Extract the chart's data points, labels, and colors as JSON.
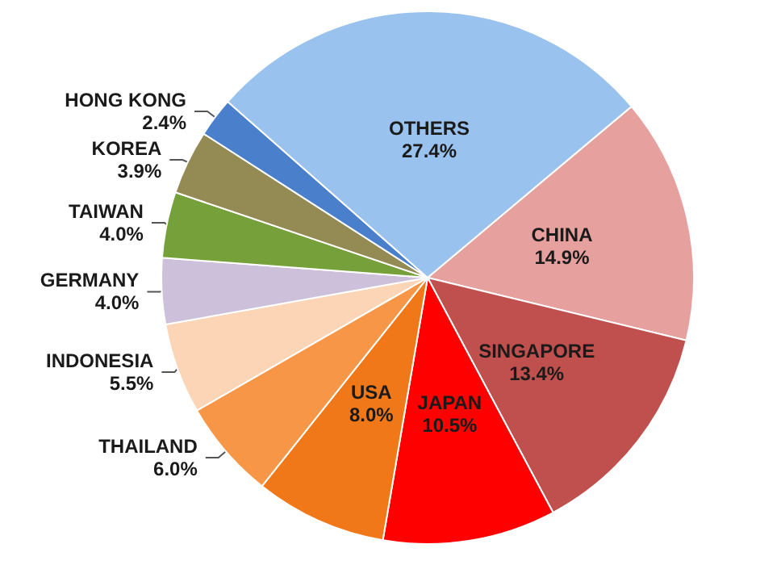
{
  "chart_data": {
    "type": "pie",
    "categories": [
      "CHINA",
      "SINGAPORE",
      "JAPAN",
      "USA",
      "THAILAND",
      "INDONESIA",
      "GERMANY",
      "TAIWAN",
      "KOREA",
      "HONG KONG",
      "OTHERS"
    ],
    "values": [
      14.9,
      13.4,
      10.5,
      8.0,
      6.0,
      5.5,
      4.0,
      4.0,
      3.9,
      2.4,
      27.4
    ],
    "value_labels": [
      "14.9%",
      "13.4%",
      "10.5%",
      "8.0%",
      "6.0%",
      "5.5%",
      "4.0%",
      "4.0%",
      "3.9%",
      "2.4%",
      "27.4%"
    ],
    "colors": [
      "#e6a09e",
      "#c0504d",
      "#ff0000",
      "#f07818",
      "#f79646",
      "#fbd5b5",
      "#ccc0da",
      "#76a03a",
      "#948a54",
      "#4a7fcb",
      "#99c2ee"
    ],
    "legend": false
  }
}
